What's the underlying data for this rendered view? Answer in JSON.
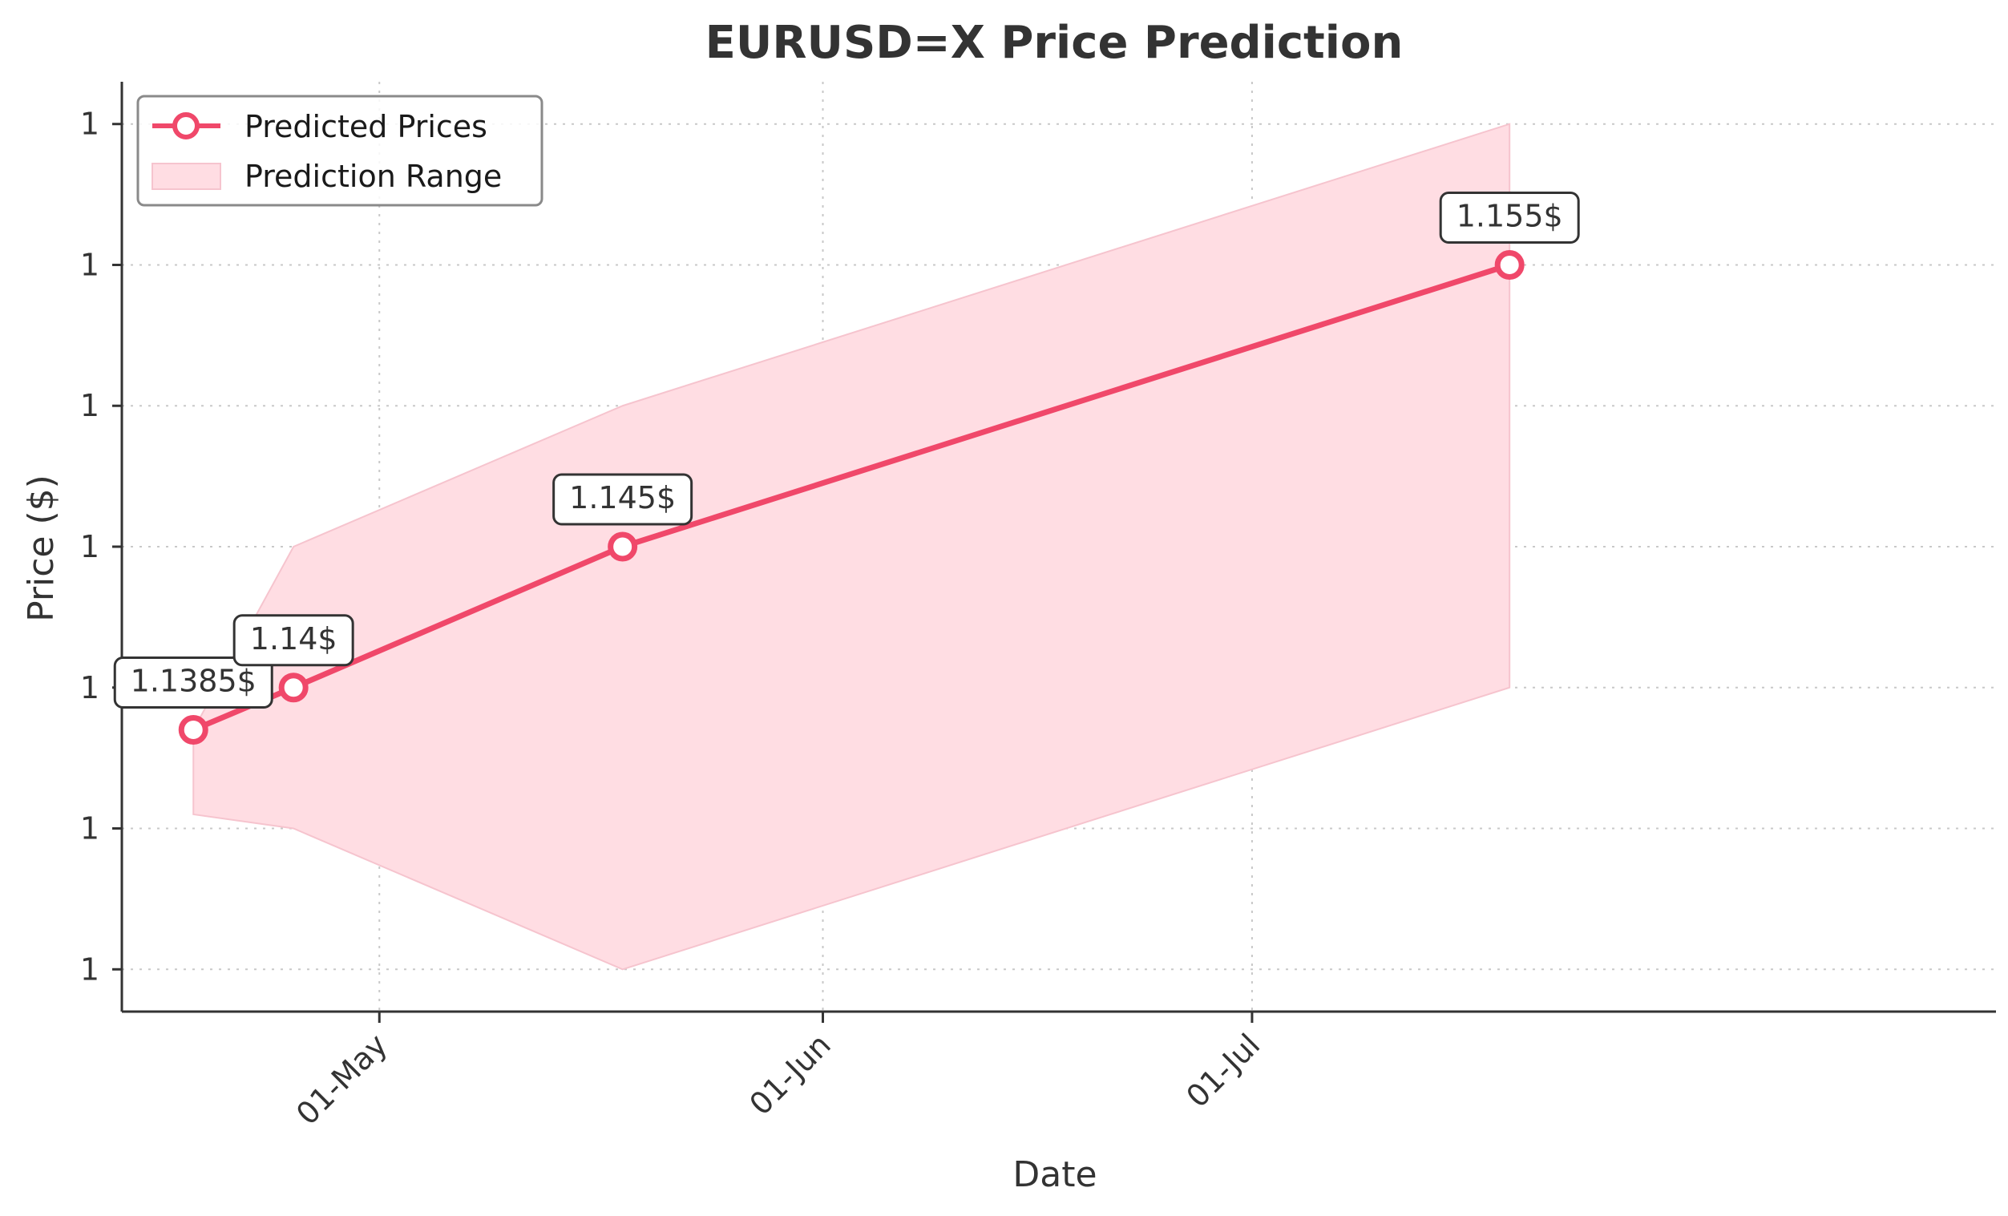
{
  "chart_data": {
    "type": "line",
    "title": "EURUSD=X Price Prediction",
    "xlabel": "Date",
    "ylabel": "Price ($)",
    "x_tick_labels": [
      "01-May",
      "01-Jun",
      "01-Jul"
    ],
    "x_tick_dates": [
      "2025-05-01",
      "2025-06-01",
      "2025-07-01"
    ],
    "xlim": [
      "2025-04-13",
      "2025-08-22"
    ],
    "y_tick_labels": [
      "1",
      "1",
      "1",
      "1",
      "1",
      "1",
      "1"
    ],
    "y_tick_values": [
      1.13,
      1.135,
      1.14,
      1.145,
      1.15,
      1.155,
      1.16
    ],
    "ylim": [
      1.1285,
      1.1615
    ],
    "grid": true,
    "legend_position": "top-left",
    "series": [
      {
        "name": "Predicted Prices",
        "color": "#f0486a",
        "marker": "circle",
        "points": [
          {
            "x": "2025-04-18",
            "y": 1.1385,
            "label": "1.1385$"
          },
          {
            "x": "2025-04-25",
            "y": 1.14,
            "label": "1.14$"
          },
          {
            "x": "2025-05-18",
            "y": 1.145,
            "label": "1.145$"
          },
          {
            "x": "2025-07-19",
            "y": 1.155,
            "label": "1.155$"
          }
        ]
      }
    ],
    "range": {
      "name": "Prediction Range",
      "color": "#ffdde3",
      "edge_color": "#f6c4ce",
      "x": [
        "2025-04-18",
        "2025-04-25",
        "2025-05-18",
        "2025-07-19"
      ],
      "upper": [
        1.1385,
        1.145,
        1.15,
        1.16
      ],
      "lower": [
        1.1355,
        1.135,
        1.13,
        1.14
      ]
    }
  }
}
